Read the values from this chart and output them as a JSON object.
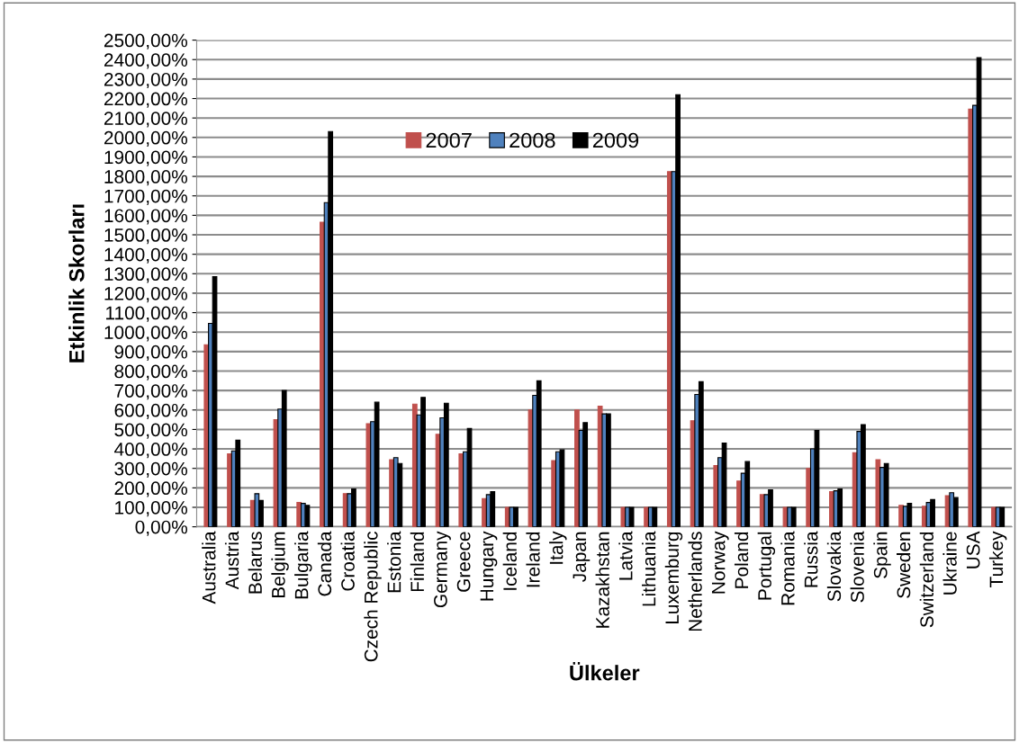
{
  "chart_data": {
    "type": "bar",
    "xlabel": "Ülkeler",
    "ylabel": "Etkinlik Skorları",
    "categories": [
      "Australia",
      "Austria",
      "Belarus",
      "Belgium",
      "Bulgaria",
      "Canada",
      "Croatia",
      "Czech Republic",
      "Estonia",
      "Finland",
      "Germany",
      "Greece",
      "Hungary",
      "Iceland",
      "Ireland",
      "Italy",
      "Japan",
      "Kazakhstan",
      "Latvia",
      "Lithuania",
      "Luxemburg",
      "Netherlands",
      "Norway",
      "Poland",
      "Portugal",
      "Romania",
      "Russia",
      "Slovakia",
      "Slovenia",
      "Spain",
      "Sweden",
      "Switzerland",
      "Ukraine",
      "USA",
      "Turkey"
    ],
    "series": [
      {
        "name": "2007",
        "color": "#c0504d",
        "values": [
          935,
          375,
          135,
          550,
          125,
          1565,
          170,
          530,
          345,
          630,
          475,
          375,
          145,
          100,
          600,
          340,
          600,
          620,
          100,
          100,
          1825,
          545,
          315,
          235,
          165,
          100,
          300,
          180,
          380,
          345,
          110,
          105,
          160,
          2145,
          100
        ]
      },
      {
        "name": "2008",
        "color": "#4f81bd",
        "values": [
          1045,
          390,
          170,
          605,
          120,
          1665,
          170,
          540,
          355,
          575,
          560,
          385,
          165,
          100,
          675,
          385,
          495,
          580,
          100,
          100,
          1825,
          680,
          355,
          275,
          165,
          100,
          400,
          185,
          490,
          305,
          105,
          125,
          175,
          2165,
          100
        ]
      },
      {
        "name": "2009",
        "color": "#000000",
        "values": [
          1285,
          445,
          135,
          700,
          110,
          2030,
          195,
          640,
          325,
          665,
          635,
          505,
          180,
          100,
          750,
          395,
          535,
          580,
          100,
          100,
          2220,
          745,
          430,
          335,
          190,
          100,
          495,
          195,
          525,
          325,
          120,
          140,
          150,
          2410,
          100
        ]
      }
    ],
    "ylim": [
      0,
      2500
    ],
    "yticks": [
      {
        "value": 0,
        "label": "0,00%"
      },
      {
        "value": 100,
        "label": "100,00%"
      },
      {
        "value": 200,
        "label": "200,00%"
      },
      {
        "value": 300,
        "label": "300,00%"
      },
      {
        "value": 400,
        "label": "400,00%"
      },
      {
        "value": 500,
        "label": "500,00%"
      },
      {
        "value": 600,
        "label": "600,00%"
      },
      {
        "value": 700,
        "label": "700,00%"
      },
      {
        "value": 800,
        "label": "800,00%"
      },
      {
        "value": 900,
        "label": "900,00%"
      },
      {
        "value": 1000,
        "label": "1000,00%"
      },
      {
        "value": 1100,
        "label": "1100,00%"
      },
      {
        "value": 1200,
        "label": "1200,00%"
      },
      {
        "value": 1300,
        "label": "1300,00%"
      },
      {
        "value": 1400,
        "label": "1400,00%"
      },
      {
        "value": 1500,
        "label": "1500,00%"
      },
      {
        "value": 1600,
        "label": "1600,00%"
      },
      {
        "value": 1700,
        "label": "1700,00%"
      },
      {
        "value": 1800,
        "label": "1800,00%"
      },
      {
        "value": 1900,
        "label": "1900,00%"
      },
      {
        "value": 2000,
        "label": "2000,00%"
      },
      {
        "value": 2100,
        "label": "2100,00%"
      },
      {
        "value": 2200,
        "label": "2200,00%"
      },
      {
        "value": 2300,
        "label": "2300,00%"
      },
      {
        "value": 2400,
        "label": "2400,00%"
      },
      {
        "value": 2500,
        "label": "2500,00%"
      }
    ],
    "grid": "y",
    "legend": "top"
  }
}
